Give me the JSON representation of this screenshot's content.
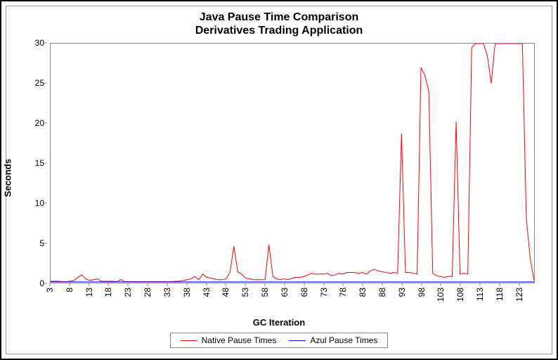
{
  "chart": {
    "type": "line",
    "title_line1": "Java Pause Time Comparison",
    "title_line2": "Derivatives Trading Application",
    "title_fontsize": 16,
    "title_fontweight": "bold",
    "x_axis": {
      "label": "GC Iteration",
      "label_fontsize": 13,
      "label_fontweight": "bold",
      "min": 3,
      "max": 127,
      "tick_start": 3,
      "tick_step": 5,
      "ticks": [
        3,
        8,
        13,
        18,
        23,
        28,
        33,
        38,
        43,
        48,
        53,
        58,
        63,
        68,
        73,
        78,
        83,
        88,
        93,
        98,
        103,
        108,
        113,
        118,
        123
      ],
      "tick_rotation_deg": -90,
      "tick_fontsize": 12
    },
    "y_axis": {
      "label": "Seconds",
      "label_fontsize": 13,
      "label_fontweight": "bold",
      "min": 0,
      "max": 30,
      "tick_step": 5,
      "ticks": [
        0,
        5,
        10,
        15,
        20,
        25,
        30
      ],
      "tick_fontsize": 12
    },
    "background_color": "#ffffff",
    "plot_border_color": "#888888",
    "outer_border_color": "#000000",
    "inner_border_color": "#999999",
    "series": [
      {
        "name": "Native Pause Times",
        "color": "#ff0000",
        "line_width": 1,
        "x": [
          3,
          4,
          5,
          6,
          7,
          8,
          9,
          10,
          11,
          12,
          13,
          14,
          15,
          16,
          17,
          18,
          19,
          20,
          21,
          22,
          23,
          24,
          25,
          26,
          27,
          28,
          29,
          30,
          31,
          32,
          33,
          34,
          35,
          36,
          37,
          38,
          39,
          40,
          41,
          42,
          43,
          44,
          45,
          46,
          47,
          48,
          49,
          50,
          51,
          52,
          53,
          54,
          55,
          56,
          57,
          58,
          59,
          60,
          61,
          62,
          63,
          64,
          65,
          66,
          67,
          68,
          69,
          70,
          71,
          72,
          73,
          74,
          75,
          76,
          77,
          78,
          79,
          80,
          81,
          82,
          83,
          84,
          85,
          86,
          87,
          88,
          89,
          90,
          91,
          92,
          93,
          94,
          95,
          96,
          97,
          98,
          99,
          100,
          101,
          102,
          103,
          104,
          105,
          106,
          107,
          108,
          109,
          110,
          111,
          112,
          113,
          114,
          115,
          116,
          117,
          118,
          119,
          120,
          121,
          122,
          123,
          124,
          125,
          126,
          127
        ],
        "y": [
          0.1,
          0.1,
          0.1,
          0.05,
          0.05,
          0.1,
          0.2,
          0.6,
          0.9,
          0.4,
          0.2,
          0.3,
          0.4,
          0.1,
          0.1,
          0.1,
          0.1,
          0.05,
          0.3,
          0.05,
          0.05,
          0.05,
          0.05,
          0.05,
          0.05,
          0.05,
          0.05,
          0.05,
          0.05,
          0.05,
          0.05,
          0.05,
          0.1,
          0.1,
          0.2,
          0.3,
          0.4,
          0.7,
          0.3,
          1.0,
          0.6,
          0.5,
          0.4,
          0.3,
          0.3,
          0.4,
          1.2,
          4.5,
          1.3,
          1.0,
          0.5,
          0.4,
          0.3,
          0.3,
          0.3,
          0.3,
          4.7,
          0.7,
          0.4,
          0.3,
          0.4,
          0.3,
          0.5,
          0.6,
          0.6,
          0.7,
          0.9,
          1.1,
          1.0,
          1.0,
          1.0,
          1.1,
          0.8,
          0.9,
          1.1,
          1.0,
          1.2,
          1.2,
          1.2,
          1.1,
          1.2,
          1.0,
          1.4,
          1.6,
          1.4,
          1.3,
          1.2,
          1.1,
          1.2,
          1.1,
          18.7,
          1.2,
          1.2,
          1.1,
          1.0,
          27.0,
          26.0,
          24.0,
          1.1,
          0.8,
          0.7,
          0.6,
          0.7,
          0.7,
          20.2,
          1.0,
          1.1,
          1.0,
          29.5,
          30,
          30,
          30,
          28.5,
          25,
          30,
          30,
          30,
          30,
          30,
          30,
          30,
          30,
          8.0,
          3.0,
          0.2
        ]
      },
      {
        "name": "Azul Pause Times",
        "color": "#0000ff",
        "line_width": 1,
        "x": [
          3,
          4,
          5,
          6,
          7,
          8,
          9,
          10,
          11,
          12,
          13,
          14,
          15,
          16,
          17,
          18,
          19,
          20,
          21,
          22,
          23,
          24,
          25,
          26,
          27,
          28,
          29,
          30,
          31,
          32,
          33,
          34,
          35,
          36,
          37,
          38,
          39,
          40,
          41,
          42,
          43,
          44,
          45,
          46,
          47,
          48,
          49,
          50,
          51,
          52,
          53,
          54,
          55,
          56,
          57,
          58,
          59,
          60,
          61,
          62,
          63,
          64,
          65,
          66,
          67,
          68,
          69,
          70,
          71,
          72,
          73,
          74,
          75,
          76,
          77,
          78,
          79,
          80,
          81,
          82,
          83,
          84,
          85,
          86,
          87,
          88,
          89,
          90,
          91,
          92,
          93,
          94,
          95,
          96,
          97,
          98,
          99,
          100,
          101,
          102,
          103,
          104,
          105,
          106,
          107,
          108,
          109,
          110,
          111,
          112,
          113,
          114,
          115,
          116,
          117,
          118,
          119,
          120,
          121,
          122,
          123,
          124,
          125,
          126,
          127
        ],
        "y": [
          0.02,
          0.02,
          0.02,
          0.02,
          0.02,
          0.02,
          0.02,
          0.02,
          0.02,
          0.02,
          0.02,
          0.02,
          0.02,
          0.02,
          0.02,
          0.02,
          0.02,
          0.02,
          0.02,
          0.02,
          0.02,
          0.02,
          0.02,
          0.02,
          0.02,
          0.02,
          0.02,
          0.02,
          0.02,
          0.02,
          0.02,
          0.02,
          0.02,
          0.02,
          0.02,
          0.02,
          0.02,
          0.02,
          0.02,
          0.02,
          0.02,
          0.02,
          0.02,
          0.02,
          0.02,
          0.02,
          0.02,
          0.02,
          0.02,
          0.02,
          0.02,
          0.02,
          0.02,
          0.02,
          0.02,
          0.02,
          0.02,
          0.02,
          0.02,
          0.02,
          0.02,
          0.02,
          0.02,
          0.02,
          0.02,
          0.02,
          0.02,
          0.02,
          0.02,
          0.02,
          0.02,
          0.02,
          0.02,
          0.02,
          0.02,
          0.02,
          0.02,
          0.02,
          0.02,
          0.02,
          0.02,
          0.02,
          0.02,
          0.02,
          0.02,
          0.02,
          0.02,
          0.02,
          0.02,
          0.02,
          0.02,
          0.02,
          0.02,
          0.02,
          0.02,
          0.02,
          0.02,
          0.02,
          0.02,
          0.02,
          0.02,
          0.02,
          0.02,
          0.02,
          0.02,
          0.02,
          0.02,
          0.02,
          0.02,
          0.02,
          0.02,
          0.02,
          0.02,
          0.02,
          0.02,
          0.02,
          0.02,
          0.02,
          0.02,
          0.02,
          0.02,
          0.02,
          0.02,
          0.02,
          0.02
        ]
      }
    ],
    "legend": {
      "position": "bottom",
      "border_color": "#888888",
      "fontsize": 12,
      "items": [
        {
          "label": "Native Pause Times",
          "color": "#ff0000"
        },
        {
          "label": "Azul Pause Times",
          "color": "#0000ff"
        }
      ]
    }
  }
}
